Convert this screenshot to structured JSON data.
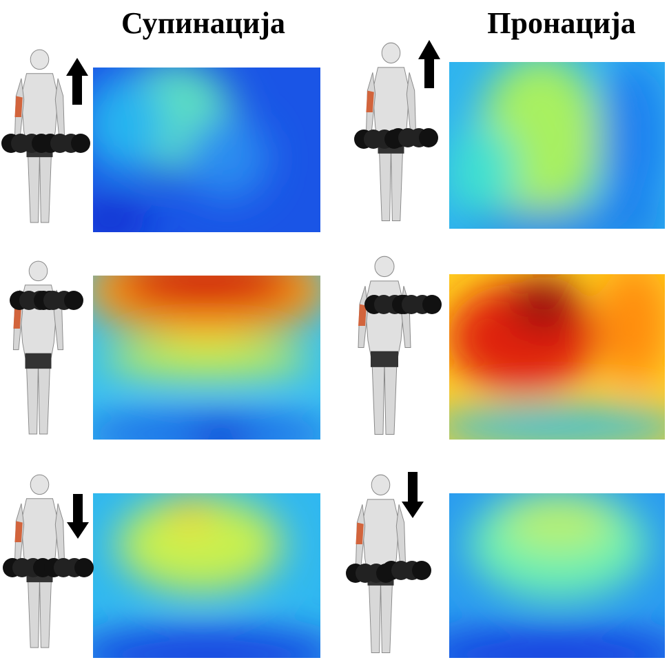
{
  "header": {
    "left_title": "Супинација",
    "right_title": "Пронација"
  }
}
